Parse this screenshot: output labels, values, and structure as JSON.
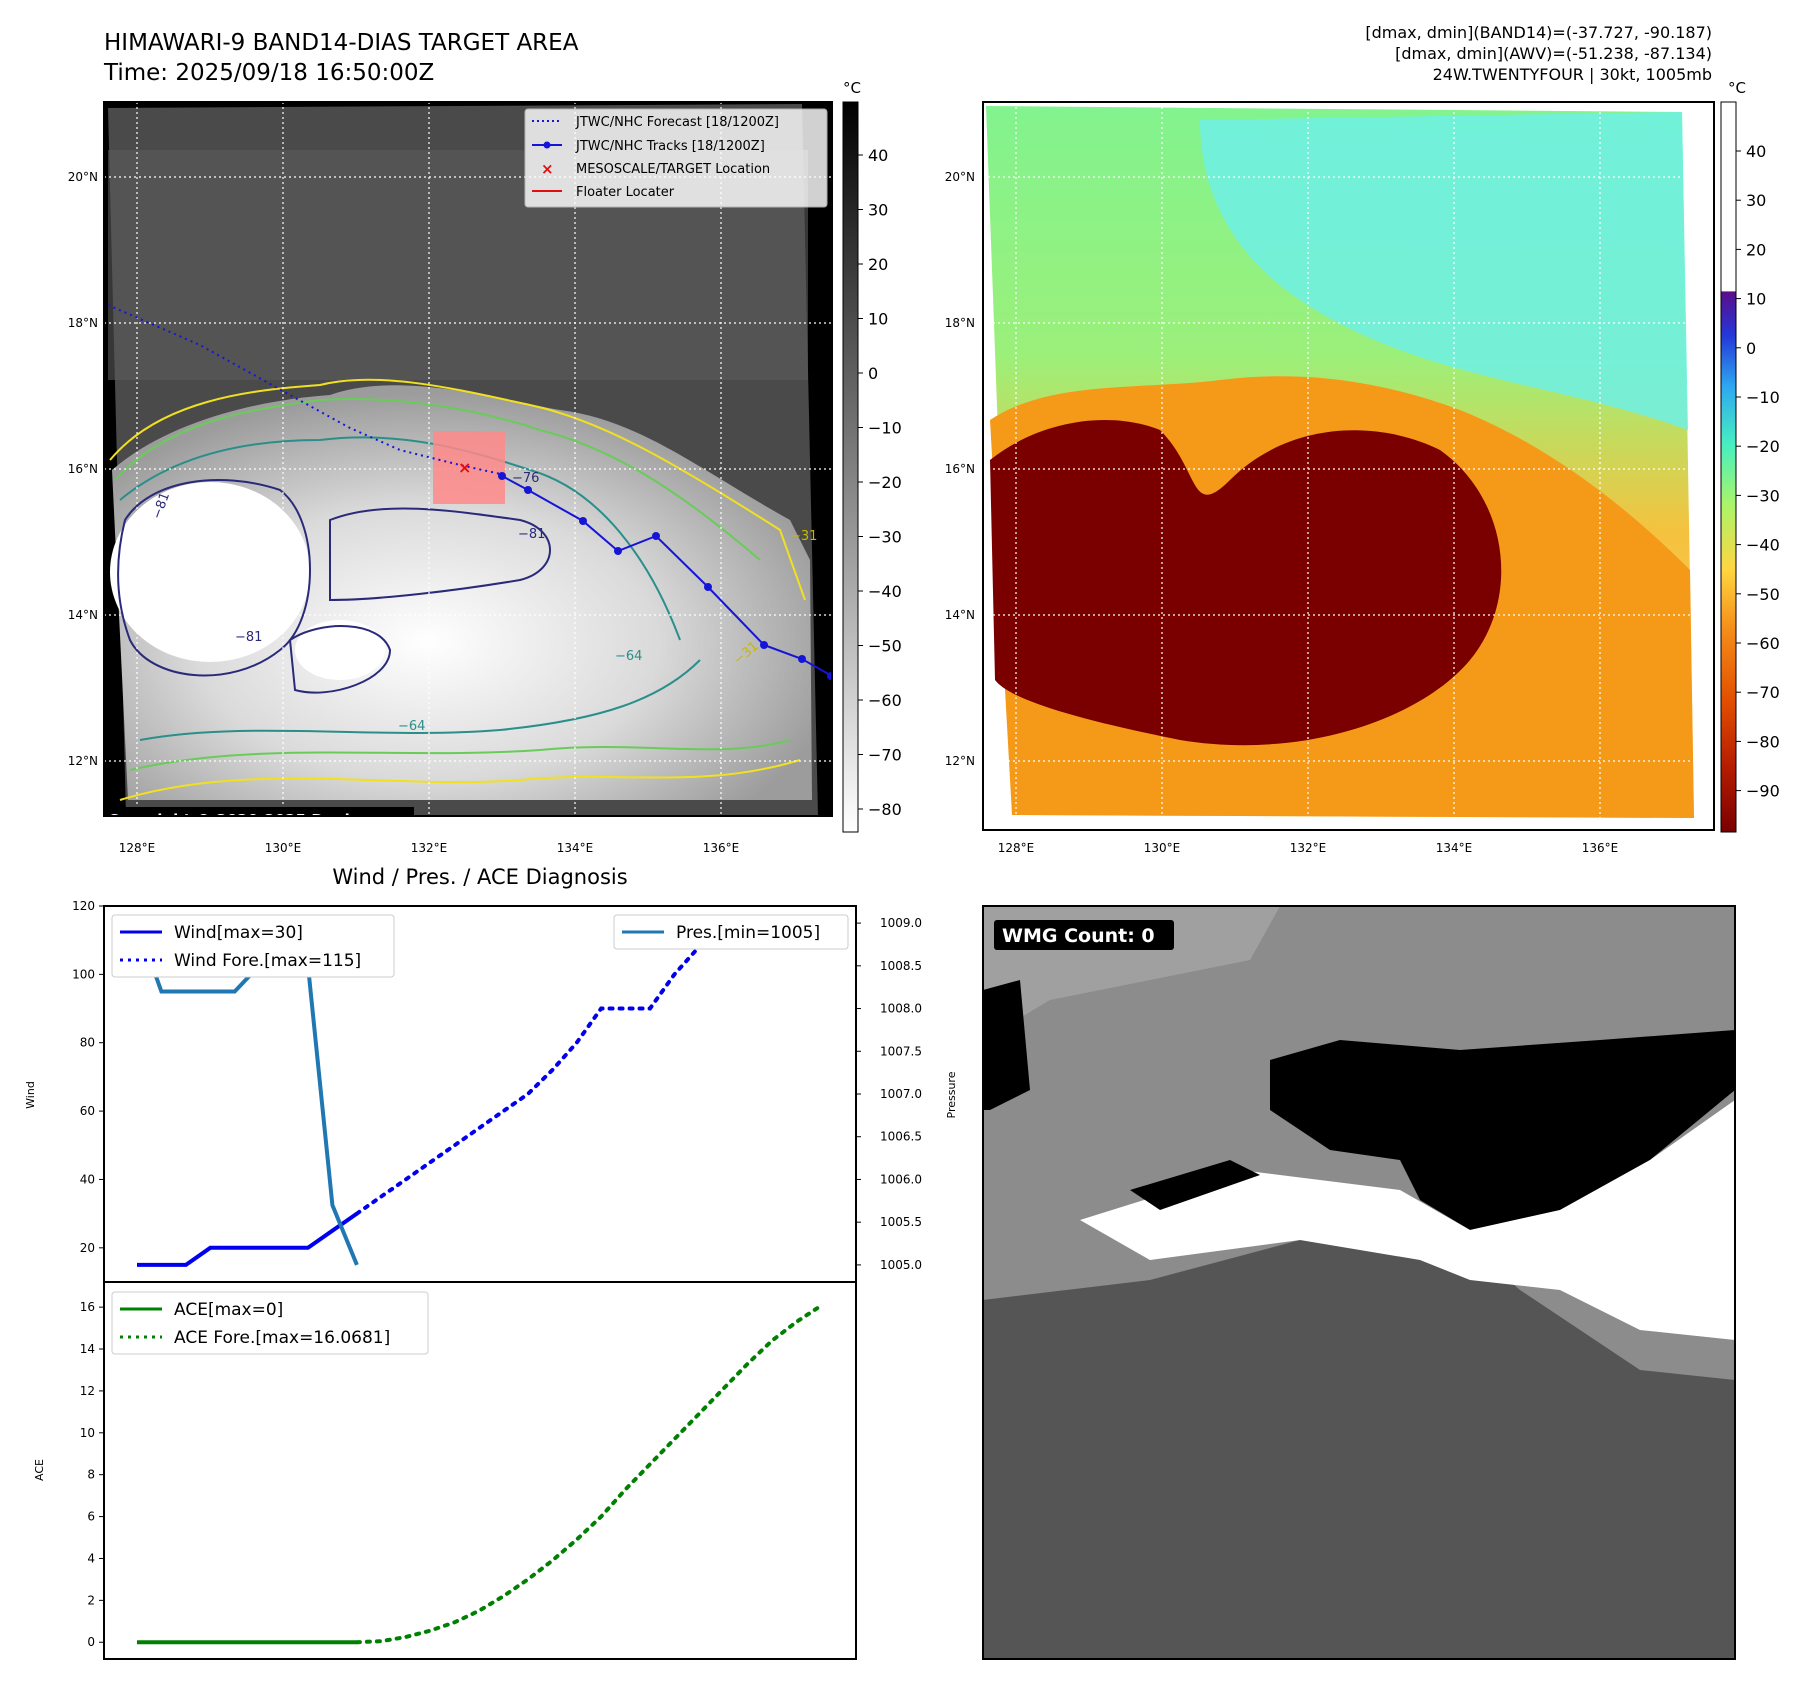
{
  "header": {
    "title_line1": "HIMAWARI-9 BAND14-DIAS TARGET AREA",
    "title_line2": "Time: 2025/09/18 16:50:00Z",
    "info_line1": "[dmax, dmin](BAND14)=(-37.727, -90.187)",
    "info_line2": "[dmax, dmin](AWV)=(-51.238, -87.134)",
    "info_line3": "24W.TWENTYFOUR | 30kt, 1005mb"
  },
  "map_axes": {
    "lon_labels": [
      "128°E",
      "130°E",
      "132°E",
      "134°E",
      "136°E"
    ],
    "lat_labels": [
      "20°N",
      "18°N",
      "16°N",
      "14°N",
      "12°N"
    ]
  },
  "ir_panel": {
    "colorbar_unit": "°C",
    "colorbar_ticks": [
      "40",
      "30",
      "20",
      "10",
      "0",
      "−10",
      "−20",
      "−30",
      "−40",
      "−50",
      "−60",
      "−70",
      "−80"
    ],
    "legend": [
      "JTWC/NHC Forecast [18/1200Z]",
      "JTWC/NHC Tracks [18/1200Z]",
      "MESOSCALE/TARGET Location",
      "Floater Locater"
    ],
    "contour_labels": [
      "−81",
      "−81",
      "−64",
      "−76",
      "−81",
      "−31",
      "−64",
      "−31"
    ],
    "copyright": "Copyright © 2020-2025 Dapiya",
    "colors": {
      "forecast": "#1515d8",
      "track": "#1515d8",
      "target": "#e01010",
      "floater": "#e01010"
    }
  },
  "awv_panel": {
    "colorbar_unit": "°C",
    "colorbar_ticks": [
      "40",
      "30",
      "20",
      "10",
      "0",
      "−10",
      "−20",
      "−30",
      "−40",
      "−50",
      "−60",
      "−70",
      "−80",
      "−90"
    ]
  },
  "diag_title": "Wind / Pres. / ACE Diagnosis",
  "chart_data": [
    {
      "type": "line",
      "title": "Wind / Pres. / ACE Diagnosis",
      "ylabel": "Wind",
      "ylabel_right": "Pressure",
      "ylim": [
        10,
        120
      ],
      "yticks": [
        "120",
        "100",
        "80",
        "60",
        "40",
        "20"
      ],
      "ylim_right": [
        1004.8,
        1009.2
      ],
      "yticks_right": [
        "1009.0",
        "1008.5",
        "1008.0",
        "1007.5",
        "1007.0",
        "1006.5",
        "1006.0",
        "1005.5",
        "1005.0"
      ],
      "series": [
        {
          "name": "Wind[max=30]",
          "style": "solid",
          "color": "#0000ee",
          "axis": "left",
          "x": [
            0,
            1,
            2,
            3,
            4,
            5,
            6,
            7,
            8,
            9
          ],
          "values": [
            15,
            15,
            15,
            20,
            20,
            20,
            20,
            20,
            25,
            30
          ]
        },
        {
          "name": "Wind Fore.[max=115]",
          "style": "dotted",
          "color": "#0000ee",
          "axis": "left",
          "x": [
            9,
            10,
            11,
            12,
            13,
            14,
            15,
            16,
            17,
            18,
            19,
            20,
            21,
            22,
            23,
            24,
            25,
            26,
            27,
            28
          ],
          "values": [
            30,
            35,
            40,
            45,
            50,
            55,
            60,
            65,
            72,
            80,
            90,
            90,
            90,
            100,
            108,
            110,
            112,
            115,
            115,
            115
          ]
        },
        {
          "name": "Pres.[min=1005]",
          "style": "solid",
          "color": "#1f77b4",
          "axis": "right",
          "x": [
            0,
            1,
            2,
            3,
            4,
            5,
            6,
            7,
            8,
            9
          ],
          "values": [
            1009.0,
            1008.2,
            1008.2,
            1008.2,
            1008.2,
            1008.5,
            1008.5,
            1008.5,
            1005.7,
            1005.0
          ]
        }
      ]
    },
    {
      "type": "line",
      "ylabel": "ACE",
      "ylim": [
        -0.8,
        17.2
      ],
      "yticks": [
        "16",
        "14",
        "12",
        "10",
        "8",
        "6",
        "4",
        "2",
        "0"
      ],
      "series": [
        {
          "name": "ACE[max=0]",
          "style": "solid",
          "color": "#008000",
          "x": [
            0,
            9
          ],
          "values": [
            0,
            0
          ]
        },
        {
          "name": "ACE Fore.[max=16.0681]",
          "style": "dotted",
          "color": "#008000",
          "x": [
            9,
            10,
            11,
            12,
            13,
            14,
            15,
            16,
            17,
            18,
            19,
            20,
            21,
            22,
            23,
            24,
            25,
            26,
            27,
            28
          ],
          "values": [
            0,
            0.05,
            0.25,
            0.55,
            0.95,
            1.5,
            2.2,
            3.0,
            3.9,
            4.9,
            6.0,
            7.3,
            8.5,
            9.7,
            10.9,
            12.1,
            13.3,
            14.4,
            15.3,
            16.0681
          ]
        }
      ]
    }
  ],
  "wmg_panel": {
    "label": "WMG Count: 0"
  }
}
